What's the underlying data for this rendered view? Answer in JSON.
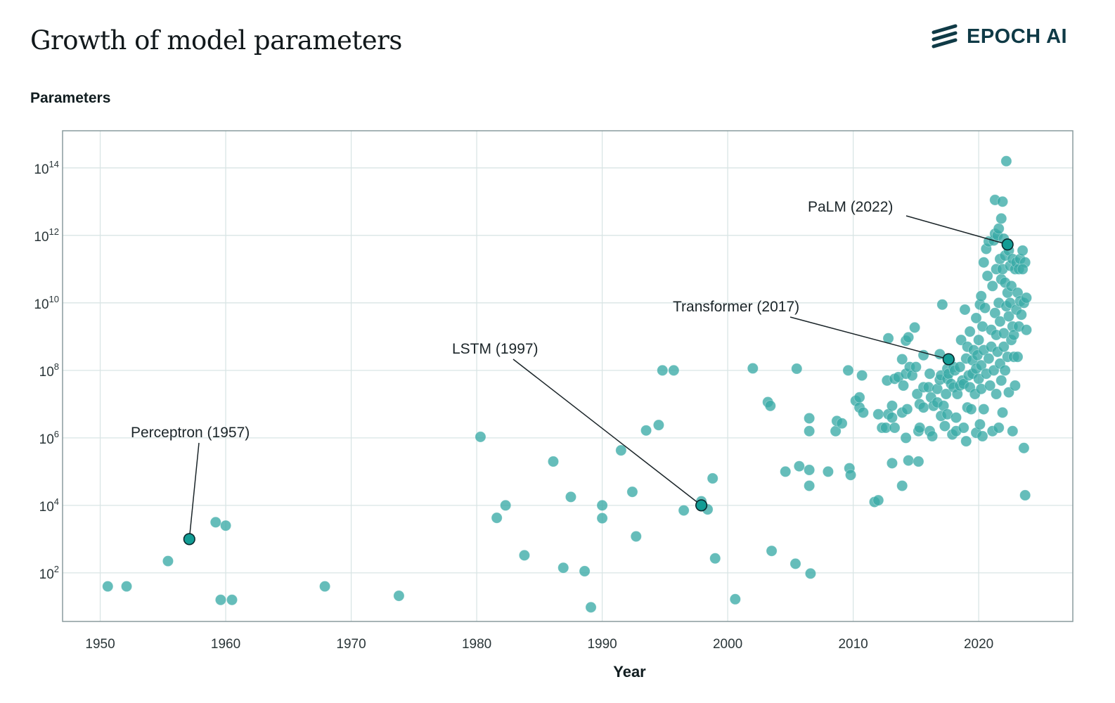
{
  "header": {
    "title": "Growth of model parameters",
    "brand": "EPOCH AI"
  },
  "colors": {
    "point": "#3aaba6",
    "highlight": "#129c94",
    "grid": "#d9e5e5",
    "frame": "#8a9b9e",
    "brand": "#0f3a46"
  },
  "chart_data": {
    "type": "scatter",
    "title": "Growth of model parameters",
    "xlabel": "Year",
    "ylabel": "Parameters",
    "yscale": "log10",
    "xlim": [
      1947,
      2027.5
    ],
    "ylim_log10": [
      0.56,
      15.1
    ],
    "grid": true,
    "x_ticks": [
      1950,
      1960,
      1970,
      1980,
      1990,
      2000,
      2010,
      2020
    ],
    "x_tick_labels": [
      "1950",
      "1960",
      "1970",
      "1980",
      "1990",
      "2000",
      "2010",
      "2020"
    ],
    "y_ticks_log10": [
      2,
      4,
      6,
      8,
      10,
      12,
      14
    ],
    "y_tick_base": "10",
    "y_tick_exponents": [
      "2",
      "4",
      "6",
      "8",
      "10",
      "12",
      "14"
    ],
    "points": [
      [
        1950.6,
        1.6
      ],
      [
        1952.1,
        1.6
      ],
      [
        1955.4,
        2.35
      ],
      [
        1959.2,
        3.5
      ],
      [
        1959.6,
        1.2
      ],
      [
        1960.0,
        3.4
      ],
      [
        1960.5,
        1.2
      ],
      [
        1967.9,
        1.6
      ],
      [
        1973.8,
        1.32
      ],
      [
        1980.3,
        6.03
      ],
      [
        1981.6,
        3.63
      ],
      [
        1982.3,
        4.0
      ],
      [
        1983.8,
        2.52
      ],
      [
        1986.1,
        5.3
      ],
      [
        1986.9,
        2.15
      ],
      [
        1987.5,
        4.25
      ],
      [
        1988.6,
        2.05
      ],
      [
        1989.1,
        0.98
      ],
      [
        1990.0,
        4.0
      ],
      [
        1990.0,
        3.62
      ],
      [
        1991.5,
        5.63
      ],
      [
        1992.4,
        4.4
      ],
      [
        1992.7,
        3.08
      ],
      [
        1993.5,
        6.22
      ],
      [
        1994.5,
        6.38
      ],
      [
        1994.8,
        8.0
      ],
      [
        1995.7,
        8.0
      ],
      [
        1996.5,
        3.85
      ],
      [
        1997.9,
        4.12
      ],
      [
        1998.4,
        3.88
      ],
      [
        1998.8,
        4.8
      ],
      [
        1999.0,
        2.43
      ],
      [
        2000.6,
        1.22
      ],
      [
        2002.0,
        8.06
      ],
      [
        2003.2,
        7.06
      ],
      [
        2003.4,
        6.95
      ],
      [
        2003.5,
        2.65
      ],
      [
        2004.6,
        5.0
      ],
      [
        2005.4,
        2.27
      ],
      [
        2005.5,
        8.05
      ],
      [
        2005.7,
        5.16
      ],
      [
        2006.5,
        5.05
      ],
      [
        2006.5,
        6.58
      ],
      [
        2006.5,
        6.2
      ],
      [
        2006.5,
        4.58
      ],
      [
        2006.6,
        1.98
      ],
      [
        2008.0,
        5.0
      ],
      [
        2008.6,
        6.2
      ],
      [
        2008.7,
        6.5
      ],
      [
        2009.1,
        6.43
      ],
      [
        2009.6,
        8.0
      ],
      [
        2009.7,
        5.1
      ],
      [
        2009.8,
        4.9
      ],
      [
        2010.2,
        7.1
      ],
      [
        2010.5,
        6.9
      ],
      [
        2010.5,
        7.2
      ],
      [
        2010.8,
        6.75
      ],
      [
        2010.7,
        7.85
      ],
      [
        2011.7,
        4.1
      ],
      [
        2012.0,
        4.15
      ],
      [
        2012.0,
        6.7
      ],
      [
        2012.3,
        6.3
      ],
      [
        2012.6,
        6.3
      ],
      [
        2012.7,
        7.7
      ],
      [
        2012.8,
        8.95
      ],
      [
        2012.8,
        6.7
      ],
      [
        2013.1,
        6.6
      ],
      [
        2013.1,
        6.95
      ],
      [
        2013.1,
        5.25
      ],
      [
        2013.3,
        7.75
      ],
      [
        2013.3,
        6.3
      ],
      [
        2013.6,
        7.8
      ],
      [
        2013.9,
        4.58
      ],
      [
        2013.9,
        6.75
      ],
      [
        2013.9,
        8.33
      ],
      [
        2014.0,
        7.55
      ],
      [
        2014.2,
        8.88
      ],
      [
        2014.2,
        7.9
      ],
      [
        2014.2,
        6.0
      ],
      [
        2014.3,
        6.85
      ],
      [
        2014.4,
        8.98
      ],
      [
        2014.4,
        5.33
      ],
      [
        2014.5,
        8.1
      ],
      [
        2014.7,
        7.85
      ],
      [
        2014.9,
        9.27
      ],
      [
        2015.0,
        8.1
      ],
      [
        2015.1,
        7.3
      ],
      [
        2015.2,
        6.2
      ],
      [
        2015.2,
        5.3
      ],
      [
        2015.3,
        6.3
      ],
      [
        2015.3,
        7.0
      ],
      [
        2015.6,
        7.5
      ],
      [
        2015.6,
        6.9
      ],
      [
        2015.6,
        8.45
      ],
      [
        2016.0,
        7.5
      ],
      [
        2016.1,
        7.9
      ],
      [
        2016.1,
        6.2
      ],
      [
        2016.2,
        7.2
      ],
      [
        2016.3,
        6.05
      ],
      [
        2016.4,
        6.95
      ],
      [
        2016.7,
        7.45
      ],
      [
        2016.7,
        7.05
      ],
      [
        2016.9,
        8.48
      ],
      [
        2016.9,
        7.72
      ],
      [
        2017.0,
        7.85
      ],
      [
        2017.0,
        6.65
      ],
      [
        2017.1,
        9.95
      ],
      [
        2017.2,
        6.95
      ],
      [
        2017.3,
        6.35
      ],
      [
        2017.4,
        7.3
      ],
      [
        2017.5,
        7.75
      ],
      [
        2017.5,
        8.05
      ],
      [
        2017.5,
        6.7
      ],
      [
        2017.6,
        7.9
      ],
      [
        2017.7,
        8.3
      ],
      [
        2017.8,
        7.6
      ],
      [
        2017.9,
        6.1
      ],
      [
        2018.0,
        7.5
      ],
      [
        2018.0,
        8.1
      ],
      [
        2018.1,
        8.0
      ],
      [
        2018.2,
        6.6
      ],
      [
        2018.2,
        6.2
      ],
      [
        2018.3,
        7.3
      ],
      [
        2018.5,
        7.55
      ],
      [
        2018.5,
        8.1
      ],
      [
        2018.6,
        8.9
      ],
      [
        2018.7,
        7.7
      ],
      [
        2018.8,
        6.3
      ],
      [
        2018.8,
        7.6
      ],
      [
        2018.9,
        9.8
      ],
      [
        2019.0,
        8.35
      ],
      [
        2019.0,
        5.9
      ],
      [
        2019.1,
        6.9
      ],
      [
        2019.1,
        8.7
      ],
      [
        2019.2,
        7.85
      ],
      [
        2019.3,
        9.15
      ],
      [
        2019.3,
        7.5
      ],
      [
        2019.4,
        6.85
      ],
      [
        2019.5,
        8.3
      ],
      [
        2019.5,
        7.9
      ],
      [
        2019.6,
        8.6
      ],
      [
        2019.7,
        7.3
      ],
      [
        2019.8,
        8.05
      ],
      [
        2019.8,
        9.55
      ],
      [
        2019.8,
        6.15
      ],
      [
        2019.9,
        8.45
      ],
      [
        2020.0,
        7.75
      ],
      [
        2020.0,
        8.9
      ],
      [
        2020.1,
        9.95
      ],
      [
        2020.1,
        6.4
      ],
      [
        2020.2,
        8.15
      ],
      [
        2020.2,
        7.45
      ],
      [
        2020.2,
        10.2
      ],
      [
        2020.3,
        9.3
      ],
      [
        2020.3,
        6.05
      ],
      [
        2020.4,
        8.6
      ],
      [
        2020.4,
        11.2
      ],
      [
        2020.4,
        6.85
      ],
      [
        2020.5,
        9.85
      ],
      [
        2020.6,
        7.9
      ],
      [
        2020.6,
        11.6
      ],
      [
        2020.7,
        10.8
      ],
      [
        2020.8,
        8.35
      ],
      [
        2020.8,
        11.82
      ],
      [
        2020.9,
        7.55
      ],
      [
        2021.0,
        9.2
      ],
      [
        2021.0,
        8.7
      ],
      [
        2021.1,
        6.2
      ],
      [
        2021.1,
        10.5
      ],
      [
        2021.2,
        11.85
      ],
      [
        2021.2,
        8.0
      ],
      [
        2021.3,
        9.7
      ],
      [
        2021.3,
        12.05
      ],
      [
        2021.3,
        13.05
      ],
      [
        2021.4,
        7.3
      ],
      [
        2021.4,
        9.05
      ],
      [
        2021.4,
        11.0
      ],
      [
        2021.5,
        8.55
      ],
      [
        2021.5,
        12.0
      ],
      [
        2021.6,
        10.0
      ],
      [
        2021.6,
        6.3
      ],
      [
        2021.6,
        12.2
      ],
      [
        2021.7,
        9.45
      ],
      [
        2021.7,
        11.3
      ],
      [
        2021.7,
        8.2
      ],
      [
        2021.8,
        12.5
      ],
      [
        2021.8,
        10.7
      ],
      [
        2021.8,
        7.7
      ],
      [
        2021.9,
        6.75
      ],
      [
        2021.9,
        11.0
      ],
      [
        2021.9,
        13.0
      ],
      [
        2022.0,
        9.1
      ],
      [
        2022.0,
        8.7
      ],
      [
        2022.0,
        11.9
      ],
      [
        2022.1,
        10.6
      ],
      [
        2022.1,
        8.0
      ],
      [
        2022.1,
        11.4
      ],
      [
        2022.2,
        14.2
      ],
      [
        2022.2,
        9.9
      ],
      [
        2022.3,
        10.3
      ],
      [
        2022.3,
        8.4
      ],
      [
        2022.4,
        11.55
      ],
      [
        2022.4,
        7.35
      ],
      [
        2022.4,
        9.6
      ],
      [
        2022.5,
        11.1
      ],
      [
        2022.5,
        10.0
      ],
      [
        2022.6,
        8.9
      ],
      [
        2022.6,
        10.5
      ],
      [
        2022.7,
        9.3
      ],
      [
        2022.7,
        6.2
      ],
      [
        2022.7,
        11.3
      ],
      [
        2022.8,
        8.4
      ],
      [
        2022.8,
        9.05
      ],
      [
        2022.9,
        11.0
      ],
      [
        2022.9,
        7.55
      ],
      [
        2023.0,
        9.8
      ],
      [
        2023.0,
        11.2
      ],
      [
        2023.1,
        10.3
      ],
      [
        2023.1,
        8.4
      ],
      [
        2023.2,
        11.0
      ],
      [
        2023.2,
        9.3
      ],
      [
        2023.3,
        11.3
      ],
      [
        2023.3,
        10.05
      ],
      [
        2023.4,
        9.65
      ],
      [
        2023.5,
        11.55
      ],
      [
        2023.6,
        10.0
      ],
      [
        2023.6,
        5.7
      ],
      [
        2023.7,
        4.3
      ],
      [
        2023.7,
        11.2
      ],
      [
        2023.8,
        10.15
      ],
      [
        2023.8,
        9.2
      ],
      [
        2023.5,
        11.0
      ]
    ],
    "annotations": [
      {
        "label": "Perceptron (1957)",
        "x": 1957.1,
        "y_log10": 3.0
      },
      {
        "label": "LSTM (1997)",
        "x": 1997.9,
        "y_log10": 4.0
      },
      {
        "label": "Transformer (2017)",
        "x": 2017.6,
        "y_log10": 8.33
      },
      {
        "label": "PaLM (2022)",
        "x": 2022.3,
        "y_log10": 11.73
      }
    ]
  }
}
